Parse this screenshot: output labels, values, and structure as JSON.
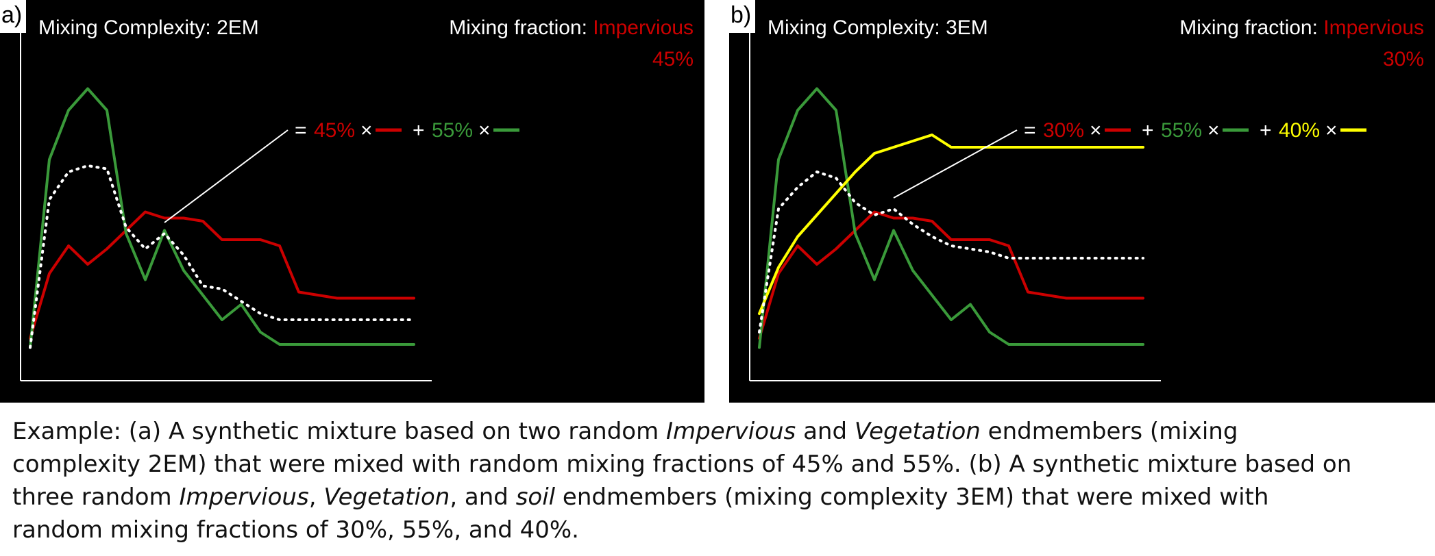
{
  "colors": {
    "impervious": "#cc0000",
    "vegetation": "#3a9a3a",
    "soil": "#ffff00",
    "mixture": "#ffffff",
    "background": "#000000"
  },
  "panels": [
    {
      "letter": "a)",
      "complexity_label": "Mixing Complexity:",
      "complexity_value": "2EM",
      "fraction_label": "Mixing fraction:",
      "fraction_class": "Impervious",
      "fraction_value": "45%",
      "equation": [
        {
          "text": "45%",
          "color": "impervious"
        },
        {
          "text": "+"
        },
        {
          "text": "55%",
          "color": "vegetation"
        }
      ]
    },
    {
      "letter": "b)",
      "complexity_label": "Mixing Complexity:",
      "complexity_value": "3EM",
      "fraction_label": "Mixing fraction:",
      "fraction_class": "Impervious",
      "fraction_value": "30%",
      "equation": [
        {
          "text": "30%",
          "color": "impervious"
        },
        {
          "text": "+"
        },
        {
          "text": "55%",
          "color": "vegetation"
        },
        {
          "text": "+"
        },
        {
          "text": "40%",
          "color": "soil"
        }
      ]
    }
  ],
  "chart_data": [
    {
      "type": "line",
      "title": "",
      "xlim": [
        0,
        100
      ],
      "ylim": [
        0,
        100
      ],
      "x": [
        0,
        5,
        10,
        15,
        20,
        25,
        30,
        35,
        40,
        45,
        50,
        55,
        60,
        65,
        70,
        75,
        80,
        85,
        90,
        95,
        100
      ],
      "series": [
        {
          "color": "impervious",
          "style": "solid",
          "values": [
            8,
            29,
            38,
            32,
            37,
            43,
            49,
            47,
            47,
            46,
            40,
            40,
            40,
            38,
            23,
            22,
            21,
            21,
            21,
            21,
            21
          ]
        },
        {
          "color": "vegetation",
          "style": "solid",
          "values": [
            5,
            66,
            82,
            89,
            82,
            42,
            27,
            43,
            30,
            22,
            14,
            19,
            10,
            6,
            6,
            6,
            6,
            6,
            6,
            6,
            6
          ]
        },
        {
          "color": "mixture",
          "style": "dotted",
          "values": [
            5,
            53,
            62,
            64,
            63,
            44,
            37,
            42,
            35,
            25,
            24,
            20,
            16,
            14,
            14,
            14,
            14,
            14,
            14,
            14,
            14
          ]
        }
      ]
    },
    {
      "type": "line",
      "title": "",
      "xlim": [
        0,
        100
      ],
      "ylim": [
        0,
        100
      ],
      "x": [
        0,
        5,
        10,
        15,
        20,
        25,
        30,
        35,
        40,
        45,
        50,
        55,
        60,
        65,
        70,
        75,
        80,
        85,
        90,
        95,
        100
      ],
      "series": [
        {
          "color": "impervious",
          "style": "solid",
          "values": [
            8,
            29,
            38,
            32,
            37,
            43,
            49,
            47,
            47,
            46,
            40,
            40,
            40,
            38,
            23,
            22,
            21,
            21,
            21,
            21,
            21
          ]
        },
        {
          "color": "vegetation",
          "style": "solid",
          "values": [
            5,
            66,
            82,
            89,
            82,
            42,
            27,
            43,
            30,
            22,
            14,
            19,
            10,
            6,
            6,
            6,
            6,
            6,
            6,
            6,
            6
          ]
        },
        {
          "color": "soil",
          "style": "solid",
          "values": [
            16,
            31,
            41,
            48,
            55,
            62,
            68,
            70,
            72,
            74,
            70,
            70,
            70,
            70,
            70,
            70,
            70,
            70,
            70,
            70,
            70
          ]
        },
        {
          "color": "mixture",
          "style": "dotted",
          "values": [
            10,
            50,
            57,
            62,
            60,
            52,
            48,
            50,
            45,
            41,
            38,
            37,
            36,
            34,
            34,
            34,
            34,
            34,
            34,
            34,
            34
          ]
        }
      ]
    }
  ],
  "caption": {
    "line1_pre": "Example: (a) A synthetic mixture based on two random ",
    "line1_i1": "Impervious",
    "line1_mid": " and ",
    "line1_i2": "Vegetation",
    "line1_post": " endmembers (mixing",
    "line2": "complexity 2EM) that were mixed with random mixing fractions of 45% and 55%. (b) A synthetic mixture based on",
    "line3_pre": "three random ",
    "line3_i1": "Impervious",
    "line3_sep1": ", ",
    "line3_i2": "Vegetation",
    "line3_sep2": ", and ",
    "line3_i3": "soil",
    "line3_post": " endmembers (mixing complexity 3EM) that were mixed with",
    "line4": "random mixing fractions of 30%, 55%, and 40%."
  }
}
